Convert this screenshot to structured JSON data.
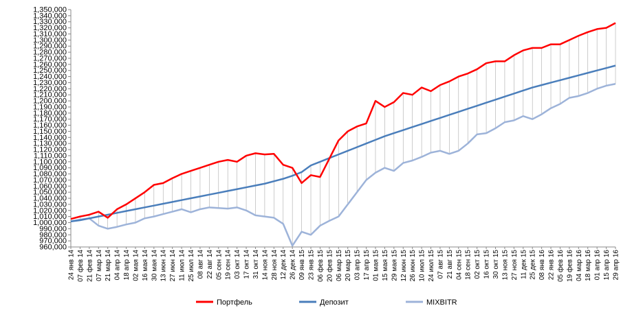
{
  "chart_data": {
    "type": "line",
    "categories": [
      "24 янв 14",
      "07 фев 14",
      "21 фев 14",
      "07 мар 14",
      "21 мар 14",
      "04 апр 14",
      "18 апр 14",
      "02 мая 14",
      "16 мая 14",
      "30 мая 14",
      "13 июн 14",
      "27 июн 14",
      "11 июл 14",
      "25 июл 14",
      "08 авг 14",
      "22 авг 14",
      "05 сен 14",
      "19 сен 14",
      "03 окт 14",
      "17 окт 14",
      "31 окт 14",
      "14 ноя 14",
      "28 ноя 14",
      "12 дек 14",
      "26 дек 14",
      "09 янв 15",
      "23 янв 15",
      "06 фев 15",
      "20 фев 15",
      "06 мар 15",
      "20 мар 15",
      "03 апр 15",
      "17 апр 15",
      "01 мая 15",
      "15 мая 15",
      "29 мая 15",
      "12 июн 15",
      "26 июн 15",
      "10 июл 15",
      "24 июл 15",
      "07 авг 15",
      "21 авг 15",
      "04 сен 15",
      "18 сен 15",
      "02 окт 15",
      "16 окт 15",
      "30 окт 15",
      "13 ноя 15",
      "27 ноя 15",
      "11 дек 15",
      "25 дек 15",
      "08 янв 16",
      "22 янв 16",
      "05 фев 16",
      "19 фев 16",
      "04 мар 16",
      "18 мар 16",
      "01 апр 16",
      "15 апр 16",
      "29 апр 16"
    ],
    "series": [
      {
        "name": "Портфель",
        "color": "#ff0000",
        "values": [
          1006000,
          1010000,
          1013000,
          1018000,
          1008000,
          1022000,
          1030000,
          1040000,
          1050000,
          1062000,
          1065000,
          1073000,
          1080000,
          1085000,
          1090000,
          1095000,
          1100000,
          1103000,
          1100000,
          1110000,
          1114000,
          1112000,
          1113000,
          1095000,
          1090000,
          1065000,
          1078000,
          1075000,
          1105000,
          1135000,
          1150000,
          1158000,
          1163000,
          1200000,
          1190000,
          1198000,
          1213000,
          1210000,
          1222000,
          1216000,
          1226000,
          1232000,
          1240000,
          1245000,
          1252000,
          1262000,
          1265000,
          1265000,
          1275000,
          1283000,
          1287000,
          1287000,
          1293000,
          1293000,
          1300000,
          1307000,
          1313000,
          1318000,
          1320000,
          1328000
        ]
      },
      {
        "name": "Депозит",
        "color": "#4a7ebb",
        "values": [
          1002000,
          1004000,
          1007000,
          1010000,
          1013000,
          1016000,
          1019000,
          1022000,
          1025000,
          1028000,
          1031000,
          1034000,
          1037000,
          1040000,
          1043000,
          1046000,
          1049000,
          1052000,
          1055000,
          1058000,
          1061000,
          1064000,
          1068000,
          1072000,
          1077000,
          1083000,
          1094000,
          1100000,
          1106000,
          1112000,
          1118000,
          1124000,
          1130000,
          1136000,
          1142000,
          1147000,
          1152000,
          1157000,
          1162000,
          1167000,
          1172000,
          1177000,
          1182000,
          1187000,
          1192000,
          1197000,
          1202000,
          1207000,
          1212000,
          1217000,
          1222000,
          1226000,
          1230000,
          1234000,
          1238000,
          1242000,
          1246000,
          1250000,
          1254000,
          1258000
        ]
      },
      {
        "name": "MIXBITR",
        "color": "#9db3d9",
        "values": [
          1002000,
          1005000,
          1007000,
          995000,
          990000,
          993000,
          997000,
          1000000,
          1007000,
          1010000,
          1014000,
          1018000,
          1022000,
          1017000,
          1022000,
          1025000,
          1024000,
          1023000,
          1025000,
          1020000,
          1012000,
          1010000,
          1008000,
          998000,
          962000,
          985000,
          980000,
          995000,
          1003000,
          1010000,
          1030000,
          1050000,
          1070000,
          1082000,
          1090000,
          1085000,
          1098000,
          1102000,
          1108000,
          1115000,
          1118000,
          1113000,
          1118000,
          1130000,
          1145000,
          1147000,
          1155000,
          1165000,
          1168000,
          1175000,
          1170000,
          1178000,
          1188000,
          1195000,
          1205000,
          1208000,
          1213000,
          1220000,
          1225000,
          1228000
        ]
      }
    ],
    "ylim": [
      960000,
      1350000
    ],
    "yticks": [
      {
        "value": 960000,
        "label": "960,000"
      },
      {
        "value": 970000,
        "label": "970,000"
      },
      {
        "value": 980000,
        "label": "980,000"
      },
      {
        "value": 990000,
        "label": "990,000"
      },
      {
        "value": 1000000,
        "label": "1,000,000"
      },
      {
        "value": 1010000,
        "label": "1,010,000"
      },
      {
        "value": 1020000,
        "label": "1,020,000"
      },
      {
        "value": 1030000,
        "label": "1,030,000"
      },
      {
        "value": 1040000,
        "label": "1,040,000"
      },
      {
        "value": 1050000,
        "label": "1,050,000"
      },
      {
        "value": 1060000,
        "label": "1,060,000"
      },
      {
        "value": 1070000,
        "label": "1,070,000"
      },
      {
        "value": 1080000,
        "label": "1,080,000"
      },
      {
        "value": 1090000,
        "label": "1,090,000"
      },
      {
        "value": 1100000,
        "label": "1,100,000"
      },
      {
        "value": 1110000,
        "label": "1,110,000"
      },
      {
        "value": 1120000,
        "label": "1,120,000"
      },
      {
        "value": 1130000,
        "label": "1,130,000"
      },
      {
        "value": 1140000,
        "label": "1,140,000"
      },
      {
        "value": 1150000,
        "label": "1,150,000"
      },
      {
        "value": 1160000,
        "label": "1,160,000"
      },
      {
        "value": 1170000,
        "label": "1,170,000"
      },
      {
        "value": 1180000,
        "label": "1,180,000"
      },
      {
        "value": 1190000,
        "label": "1,190,000"
      },
      {
        "value": 1200000,
        "label": "1,200,000"
      },
      {
        "value": 1210000,
        "label": "1,210,000"
      },
      {
        "value": 1220000,
        "label": "1,220,000"
      },
      {
        "value": 1230000,
        "label": "1,230,000"
      },
      {
        "value": 1240000,
        "label": "1,240,000"
      },
      {
        "value": 1250000,
        "label": "1,250,000"
      },
      {
        "value": 1260000,
        "label": "1,260,000"
      },
      {
        "value": 1270000,
        "label": "1,270,000"
      },
      {
        "value": 1280000,
        "label": "1,280,000"
      },
      {
        "value": 1290000,
        "label": "1,290,000"
      },
      {
        "value": 1300000,
        "label": "1,300,000"
      },
      {
        "value": 1310000,
        "label": "1,310,000"
      },
      {
        "value": 1320000,
        "label": "1,320,000"
      },
      {
        "value": 1330000,
        "label": "1,330,000"
      },
      {
        "value": 1340000,
        "label": "1,340,000"
      },
      {
        "value": 1350000,
        "label": "1,350,000"
      }
    ],
    "legend": "bottom",
    "high_low_lines": true
  }
}
